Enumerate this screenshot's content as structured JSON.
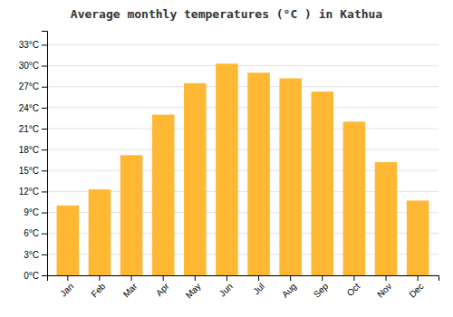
{
  "chart_data": {
    "type": "bar",
    "title": "Average monthly temperatures (°C ) in Kathua",
    "categories": [
      "Jan",
      "Feb",
      "Mar",
      "Apr",
      "May",
      "Jun",
      "Jul",
      "Aug",
      "Sep",
      "Oct",
      "Nov",
      "Dec"
    ],
    "values": [
      10.0,
      12.3,
      17.2,
      23.0,
      27.5,
      30.3,
      29.0,
      28.2,
      26.3,
      22.0,
      16.2,
      10.7
    ],
    "color": "#FFB833",
    "ylim": [
      0,
      35
    ],
    "yticks": [
      {
        "value": 0,
        "label": "0°C"
      },
      {
        "value": 3,
        "label": "3°C"
      },
      {
        "value": 6,
        "label": "6°C"
      },
      {
        "value": 9,
        "label": "9°C"
      },
      {
        "value": 12,
        "label": "12°C"
      },
      {
        "value": 15,
        "label": "15°C"
      },
      {
        "value": 18,
        "label": "18°C"
      },
      {
        "value": 21,
        "label": "21°C"
      },
      {
        "value": 24,
        "label": "24°C"
      },
      {
        "value": 27,
        "label": "27°C"
      },
      {
        "value": 30,
        "label": "30°C"
      },
      {
        "value": 33,
        "label": "33°C"
      }
    ],
    "grid": true
  }
}
